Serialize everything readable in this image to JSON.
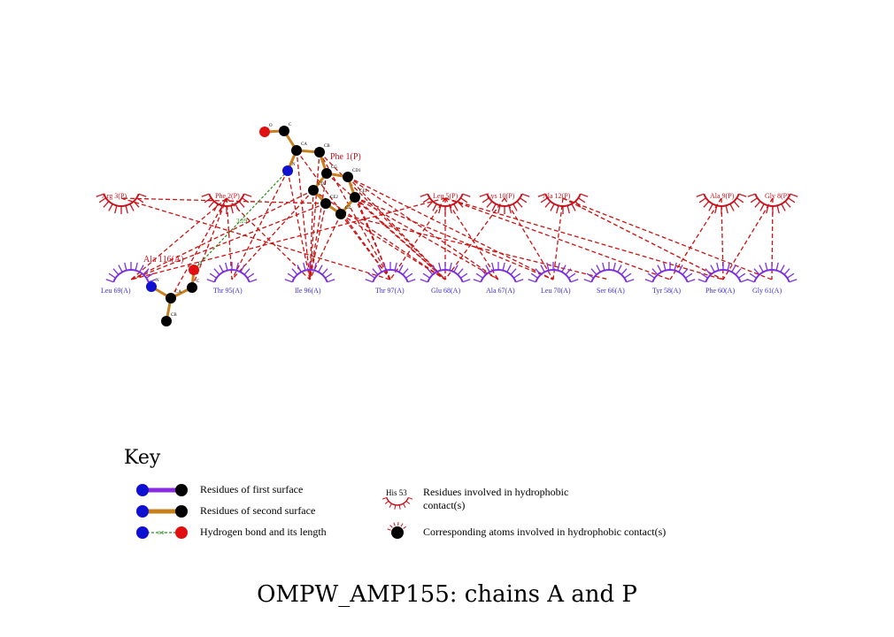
{
  "title": "OMPW_AMP155: chains A and P",
  "colors": {
    "chainA_label": "#3a2dd9",
    "chainP_label": "#c8141e",
    "hydrophobic_contact": "#cc1111",
    "hbond": "#2a8a1a",
    "bond_first": "#8a2be2",
    "bond_second": "#c8801e",
    "carbon": "#000000",
    "nitrogen": "#1010d0",
    "oxygen": "#e01010",
    "arc_chainA": "#7b2fe0",
    "arc_chainP": "#c8141e"
  },
  "ligand": {
    "name": "Phe 1(P)",
    "atoms": [
      {
        "name": "O",
        "element": "O"
      },
      {
        "name": "C",
        "element": "C"
      },
      {
        "name": "CA",
        "element": "C"
      },
      {
        "name": "CB",
        "element": "C"
      },
      {
        "name": "N",
        "element": "N"
      },
      {
        "name": "CG",
        "element": "C"
      },
      {
        "name": "CD1",
        "element": "C"
      },
      {
        "name": "CD2",
        "element": "C"
      },
      {
        "name": "CE1",
        "element": "C"
      },
      {
        "name": "CE2",
        "element": "C"
      },
      {
        "name": "CZ",
        "element": "C"
      }
    ]
  },
  "partner": {
    "name": "Ala 116(A)",
    "atoms": [
      {
        "name": "O",
        "element": "O"
      },
      {
        "name": "C",
        "element": "C"
      },
      {
        "name": "N",
        "element": "N"
      },
      {
        "name": "CA",
        "element": "C"
      },
      {
        "name": "CB",
        "element": "C"
      }
    ]
  },
  "hbond_length": "3.29",
  "residues_P": [
    "Arg 3(P)",
    "Phe 2(P)",
    "Leu 5(P)",
    "Lys 10(P)",
    "Ala 12(P)",
    "Ala 9(P)",
    "Gly 8(P)"
  ],
  "residues_A": [
    "Leu 69(A)",
    "Thr 95(A)",
    "Ile 96(A)",
    "Thr 97(A)",
    "Glu 68(A)",
    "Ala 67(A)",
    "Leu 70(A)",
    "Ser 66(A)",
    "Tyr 58(A)",
    "Phe 60(A)",
    "Gly 61(A)"
  ],
  "key": {
    "heading": "Key",
    "first_surface": "Residues of first surface",
    "second_surface": "Residues of second surface",
    "hbond": "Hydrogen bond and its length",
    "hbond_example_length": "3.0",
    "hydrophobic_example": "His 53",
    "hydrophobic_line1": "Residues involved in hydrophobic",
    "hydrophobic_line2": "contact(s)",
    "corresponding_atoms": "Corresponding atoms involved in hydrophobic contact(s)"
  }
}
